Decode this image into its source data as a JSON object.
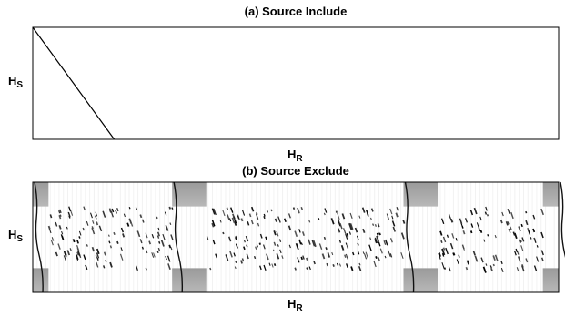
{
  "chart_data": [
    {
      "type": "heatmap",
      "title": "(a) Source Include",
      "xlabel": "H",
      "xlabel_sub": "R",
      "ylabel": "H",
      "ylabel_sub": "S",
      "description_of_content": "",
      "diagonal_path": [
        [
          0,
          0
        ],
        [
          0.155,
          1
        ]
      ],
      "colormap": "grayscale (white = 0, black = high)"
    },
    {
      "type": "heatmap",
      "title": "(b) Source Exclude",
      "xlabel": "H",
      "xlabel_sub": "R",
      "ylabel": "H",
      "ylabel_sub": "S",
      "colormap": "grayscale (white = 0, black = high)",
      "block_boundaries_x": [
        0,
        0.265,
        0.705,
        1
      ],
      "gray_corner_blocks": [
        {
          "x": [
            0,
            0.03
          ],
          "y": [
            0,
            0.22
          ]
        },
        {
          "x": [
            0,
            0.03
          ],
          "y": [
            0.78,
            1
          ]
        },
        {
          "x": [
            0.265,
            0.33
          ],
          "y": [
            0,
            0.22
          ]
        },
        {
          "x": [
            0.265,
            0.33
          ],
          "y": [
            0.78,
            1
          ]
        },
        {
          "x": [
            0.705,
            0.77
          ],
          "y": [
            0,
            0.22
          ]
        },
        {
          "x": [
            0.705,
            0.77
          ],
          "y": [
            0.78,
            1
          ]
        },
        {
          "x": [
            0.97,
            1
          ],
          "y": [
            0,
            0.22
          ]
        },
        {
          "x": [
            0.97,
            1
          ],
          "y": [
            0.78,
            1
          ]
        }
      ],
      "scatter_regions": [
        {
          "x": [
            0.03,
            0.265
          ],
          "y": [
            0.22,
            0.78
          ]
        },
        {
          "x": [
            0.33,
            0.705
          ],
          "y": [
            0.22,
            0.78
          ]
        },
        {
          "x": [
            0.77,
            0.97
          ],
          "y": [
            0.22,
            0.78
          ]
        }
      ]
    }
  ]
}
